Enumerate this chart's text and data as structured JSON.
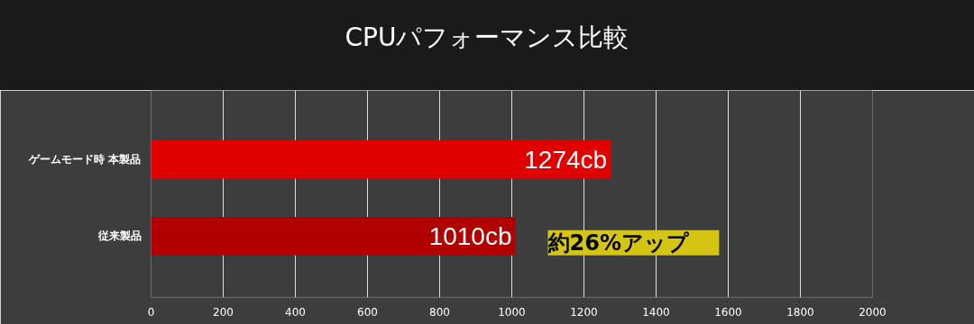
{
  "chart_data": {
    "type": "bar",
    "orientation": "horizontal",
    "title": "CPUパフォーマンス比較",
    "categories": [
      "ゲームモード時 本製品",
      "従来製品"
    ],
    "values": [
      1274,
      1010
    ],
    "value_labels": [
      "1274cb",
      "1010cb"
    ],
    "colors": [
      "#e00000",
      "#b00000"
    ],
    "xlim": [
      0,
      2000
    ],
    "xticks": [
      0,
      200,
      400,
      600,
      800,
      1000,
      1200,
      1400,
      1600,
      1800,
      2000
    ],
    "grid": "x",
    "annotations": [
      "約26%アップ"
    ]
  }
}
